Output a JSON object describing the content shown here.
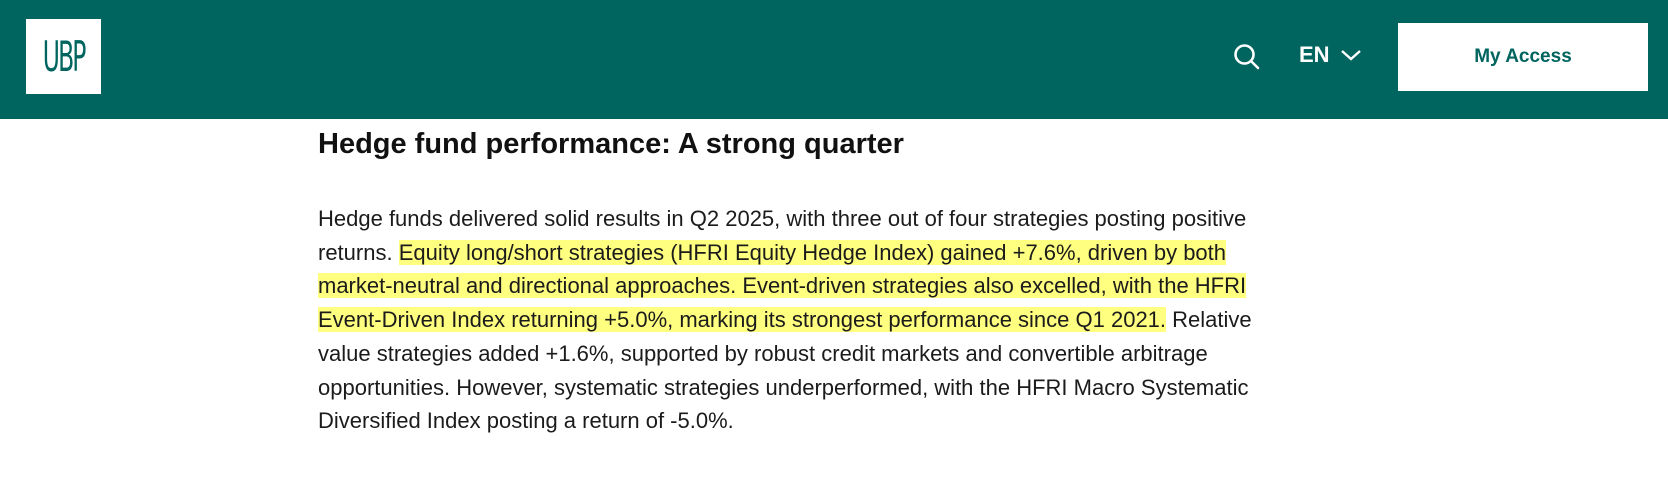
{
  "header": {
    "logo": "UBP",
    "language": "EN",
    "button": "My Access"
  },
  "article": {
    "title": "Hedge fund performance: A strong quarter",
    "paragraph": {
      "before": "Hedge funds delivered solid results in Q2 2025, with three out of four strategies posting positive returns.",
      "highlight": "Equity long/short strategies (HFRI Equity Hedge Index) gained +7.6%, driven by both market-neutral and directional approaches. Event-driven strategies also excelled, with the HFRI Event-Driven Index returning +5.0%, marking its strongest performance since Q1 2021.",
      "after": "Relative value strategies added +1.6%, supported by robust credit markets and convertible arbitrage opportunities. However, systematic strategies underperformed, with the HFRI Macro Systematic Diversified Index posting a return of -5.0%."
    }
  }
}
